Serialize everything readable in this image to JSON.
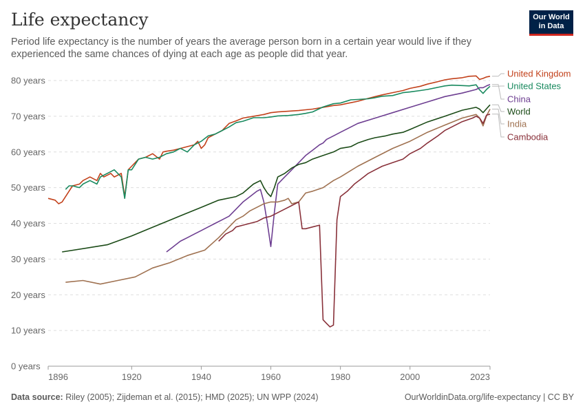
{
  "title": "Life expectancy",
  "subtitle": "Period life expectancy is the number of years the average person born in a certain year would live if they experienced the same chances of dying at each age as people did that year.",
  "logo": {
    "line1": "Our World",
    "line2": "in Data"
  },
  "footer": {
    "source_label": "Data source:",
    "source_text": "Riley (2005); Zijdeman et al. (2015); HMD (2025); UN WPP (2024)",
    "url": "OurWorldinData.org/life-expectancy | CC BY"
  },
  "chart_data": {
    "type": "line",
    "title": "Life expectancy",
    "xlim": [
      1896,
      2023
    ],
    "ylim": [
      0,
      80
    ],
    "xticks": [
      {
        "value": 1896,
        "label": "1896"
      },
      {
        "value": 1920,
        "label": "1920"
      },
      {
        "value": 1940,
        "label": "1940"
      },
      {
        "value": 1960,
        "label": "1960"
      },
      {
        "value": 1980,
        "label": "1980"
      },
      {
        "value": 2000,
        "label": "2000"
      },
      {
        "value": 2023,
        "label": "2023"
      }
    ],
    "yticks": [
      {
        "value": 0,
        "label": "0 years"
      },
      {
        "value": 10,
        "label": "10 years"
      },
      {
        "value": 20,
        "label": "20 years"
      },
      {
        "value": 30,
        "label": "30 years"
      },
      {
        "value": 40,
        "label": "40 years"
      },
      {
        "value": 50,
        "label": "50 years"
      },
      {
        "value": 60,
        "label": "60 years"
      },
      {
        "value": 70,
        "label": "70 years"
      },
      {
        "value": 80,
        "label": "80 years"
      }
    ],
    "grid": true,
    "legend_placement": "right",
    "series": [
      {
        "name": "United Kingdom",
        "color": "#c2401a",
        "x": [
          1896,
          1898,
          1899,
          1900,
          1902,
          1903,
          1905,
          1906,
          1908,
          1910,
          1911,
          1912,
          1914,
          1915,
          1917,
          1918,
          1919,
          1920,
          1922,
          1924,
          1926,
          1928,
          1929,
          1930,
          1932,
          1934,
          1936,
          1938,
          1939,
          1940,
          1941,
          1942,
          1944,
          1946,
          1948,
          1950,
          1952,
          1955,
          1958,
          1960,
          1962,
          1965,
          1968,
          1970,
          1972,
          1975,
          1978,
          1980,
          1983,
          1985,
          1988,
          1990,
          1992,
          1995,
          1998,
          2000,
          2003,
          2005,
          2008,
          2010,
          2012,
          2015,
          2017,
          2019,
          2020,
          2021,
          2022,
          2023
        ],
        "y": [
          47,
          46.5,
          45.5,
          46,
          49,
          50.5,
          51,
          52,
          53,
          52,
          54,
          53,
          54,
          53,
          54,
          47.5,
          55,
          56,
          58,
          58.5,
          59.5,
          58,
          60,
          60.2,
          60.5,
          61,
          61.5,
          62,
          63,
          61,
          62,
          64,
          65,
          66,
          68,
          68.7,
          69.5,
          70,
          70.5,
          71,
          71.2,
          71.4,
          71.6,
          71.8,
          72,
          72.5,
          73,
          73.2,
          73.8,
          74.2,
          75,
          75.5,
          76,
          76.6,
          77.2,
          77.8,
          78.4,
          79,
          79.7,
          80.2,
          80.5,
          80.8,
          81.2,
          81.3,
          80.3,
          80.6,
          81,
          81.2
        ]
      },
      {
        "name": "United States",
        "color": "#18895e",
        "x": [
          1901,
          1902,
          1903,
          1905,
          1906,
          1908,
          1910,
          1911,
          1912,
          1914,
          1915,
          1917,
          1918,
          1919,
          1920,
          1922,
          1924,
          1926,
          1928,
          1930,
          1932,
          1934,
          1936,
          1938,
          1940,
          1942,
          1944,
          1946,
          1948,
          1950,
          1952,
          1955,
          1958,
          1960,
          1962,
          1965,
          1968,
          1970,
          1972,
          1975,
          1978,
          1980,
          1983,
          1985,
          1988,
          1990,
          1992,
          1995,
          1998,
          2000,
          2003,
          2005,
          2008,
          2010,
          2012,
          2015,
          2017,
          2019,
          2020,
          2021,
          2022,
          2023
        ],
        "y": [
          49.5,
          50.5,
          50.5,
          50,
          51,
          52,
          51,
          53,
          53.5,
          54.5,
          55,
          53,
          47,
          55,
          55,
          58,
          58.5,
          58,
          58.5,
          59.5,
          60,
          61,
          60,
          62,
          63,
          64.5,
          65,
          66,
          67,
          68.2,
          68.6,
          69.6,
          69.6,
          69.8,
          70.1,
          70.2,
          70.5,
          70.8,
          71.2,
          72.6,
          73.5,
          73.7,
          74.6,
          74.7,
          74.9,
          75.2,
          75.6,
          75.8,
          76.6,
          76.8,
          77.2,
          77.5,
          78.1,
          78.5,
          78.7,
          78.6,
          78.5,
          78.8,
          77.4,
          76.4,
          77.5,
          78.4
        ]
      },
      {
        "name": "China",
        "color": "#6d3e91",
        "x": [
          1930,
          1932,
          1934,
          1936,
          1938,
          1940,
          1942,
          1944,
          1946,
          1948,
          1950,
          1952,
          1954,
          1956,
          1957,
          1958,
          1959,
          1960,
          1961,
          1962,
          1964,
          1966,
          1968,
          1970,
          1972,
          1974,
          1975,
          1976,
          1978,
          1980,
          1985,
          1990,
          1995,
          2000,
          2005,
          2010,
          2015,
          2019,
          2020,
          2021,
          2022,
          2023
        ],
        "y": [
          32,
          33.5,
          35,
          36,
          37,
          38,
          39,
          40,
          41,
          42,
          44,
          46,
          47.5,
          49,
          49.5,
          46,
          40,
          33.5,
          43,
          51,
          53,
          55,
          57,
          59,
          60.5,
          62,
          62.5,
          63.5,
          64.5,
          65.5,
          68,
          69.5,
          71,
          72.5,
          74,
          75.5,
          76.5,
          77.5,
          78,
          78,
          78.5,
          78.9
        ]
      },
      {
        "name": "World",
        "color": "#1a4a16",
        "x": [
          1900,
          1913,
          1920,
          1925,
          1930,
          1935,
          1940,
          1945,
          1950,
          1952,
          1955,
          1957,
          1958,
          1959,
          1960,
          1961,
          1962,
          1964,
          1966,
          1968,
          1970,
          1972,
          1975,
          1978,
          1980,
          1983,
          1985,
          1988,
          1990,
          1993,
          1995,
          1998,
          2000,
          2005,
          2010,
          2015,
          2019,
          2020,
          2021,
          2022,
          2023
        ],
        "y": [
          32,
          34,
          36.5,
          38.5,
          40.5,
          42.5,
          44.5,
          46.5,
          47.5,
          48.5,
          51,
          52,
          50,
          48.5,
          47.5,
          50,
          53,
          54,
          55.5,
          56.5,
          57,
          58,
          59,
          60,
          61,
          61.5,
          62.5,
          63.5,
          64,
          64.5,
          65,
          65.5,
          66.3,
          68.4,
          70,
          71.7,
          72.5,
          72,
          71,
          72.1,
          73.2
        ]
      },
      {
        "name": "India",
        "color": "#9f7150",
        "x": [
          1901,
          1906,
          1911,
          1916,
          1921,
          1926,
          1931,
          1936,
          1941,
          1945,
          1948,
          1950,
          1952,
          1954,
          1956,
          1958,
          1960,
          1962,
          1964,
          1965,
          1966,
          1968,
          1970,
          1972,
          1975,
          1978,
          1980,
          1985,
          1990,
          1995,
          2000,
          2005,
          2010,
          2015,
          2019,
          2020,
          2021,
          2022,
          2023
        ],
        "y": [
          23.5,
          24,
          23,
          24,
          25,
          27.5,
          29,
          31,
          32.5,
          36,
          39,
          41,
          42,
          43.5,
          44.5,
          45.5,
          46,
          46,
          46.5,
          47,
          45.5,
          46,
          48.5,
          49,
          50,
          52,
          53,
          56,
          58.5,
          61,
          63,
          65.5,
          67.5,
          69.5,
          70.5,
          69.5,
          67.3,
          70.1,
          72
        ]
      },
      {
        "name": "Cambodia",
        "color": "#883039",
        "x": [
          1945,
          1947,
          1949,
          1950,
          1952,
          1954,
          1956,
          1958,
          1960,
          1962,
          1964,
          1966,
          1968,
          1969,
          1970,
          1972,
          1974,
          1975,
          1976,
          1977,
          1978,
          1979,
          1980,
          1982,
          1984,
          1986,
          1988,
          1990,
          1992,
          1995,
          1998,
          2000,
          2003,
          2005,
          2008,
          2010,
          2012,
          2015,
          2018,
          2019,
          2020,
          2021,
          2022,
          2023
        ],
        "y": [
          35,
          37,
          38,
          39,
          39.5,
          40,
          40.5,
          41.5,
          42,
          43,
          44,
          45,
          46,
          38.5,
          38.5,
          39,
          39.5,
          13,
          12,
          11,
          11.5,
          41,
          47.5,
          49,
          51,
          52.5,
          54,
          55,
          56,
          57,
          58,
          59.5,
          61,
          62.5,
          64.5,
          66,
          67,
          68.5,
          69.5,
          70,
          69.5,
          68,
          70.3,
          70.6
        ]
      }
    ]
  }
}
